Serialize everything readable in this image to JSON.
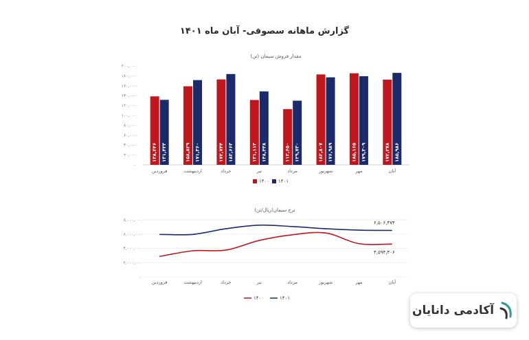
{
  "title": "گزارش ماهانه سصوفی- آبان ماه ۱۴۰۱",
  "brand": {
    "name": "آکادمی دانایان",
    "accent": "#2a9d8f"
  },
  "chart_data": [
    {
      "type": "bar",
      "title": "مقدار فروش سیمان (تن)",
      "categories": [
        "فروردین",
        "اردیبهشت",
        "خرداد",
        "تیر",
        "مرداد",
        "شهریور",
        "مهر",
        "آبان"
      ],
      "series": [
        {
          "name": "۱۴۰۰",
          "color": "#c0161c",
          "values": [
            138446,
            158829,
            172744,
            131114,
            112650,
            182807,
            185165,
            172278
          ],
          "labels": [
            "۱۳۸,۴۴۶",
            "۱۵۸,۸۲۹",
            "۱۷۲,۷۴۴",
            "۱۳۱,۱۱۴",
            "۱۱۲,۶۵۰",
            "۱۸۲,۸۰۷",
            "۱۸۵,۱۶۵",
            "۱۷۲,۲۷۸"
          ]
        },
        {
          "name": "۱۴۰۱",
          "color": "#1b2a6b",
          "values": [
            131433,
            171360,
            183663,
            148438,
            129730,
            176989,
            179309,
            185986
          ],
          "labels": [
            "۱۳۱,۴۳۳",
            "۱۷۱,۳۶۰",
            "۱۸۳,۶۶۳",
            "۱۴۸,۴۳۸",
            "۱۲۹,۷۳۰",
            "۱۷۶,۹۸۹",
            "۱۷۹,۳۰۹",
            "۱۸۵,۹۸۶"
          ]
        }
      ],
      "ylim": [
        0,
        200000
      ],
      "yticks": [
        0,
        20000,
        40000,
        60000,
        80000,
        100000,
        120000,
        140000,
        160000,
        180000,
        200000
      ],
      "ytick_labels": [
        "۰",
        "۲۰,۰۰۰",
        "۴۰,۰۰۰",
        "۶۰,۰۰۰",
        "۸۰,۰۰۰",
        "۱۰۰,۰۰۰",
        "۱۲۰,۰۰۰",
        "۱۴۰,۰۰۰",
        "۱۶۰,۰۰۰",
        "۱۸۰,۰۰۰",
        "۲۰۰,۰۰۰"
      ],
      "legend": "bottom"
    },
    {
      "type": "line",
      "title": "نرخ سیمان(ریال/تن)",
      "categories": [
        "فروردین",
        "اردیبهشت",
        "خرداد",
        "تیر",
        "مرداد",
        "شهریور",
        "مهر",
        "آبان"
      ],
      "series": [
        {
          "name": "۱۴۰۰",
          "color": "#c0161c",
          "values": [
            2850000,
            3650000,
            3750000,
            5100000,
            5900000,
            6150000,
            4650000,
            4594406
          ],
          "end_label": "۴,۵۹۴,۴۰۶"
        },
        {
          "name": "۱۴۰۱",
          "color": "#1b2a6b",
          "values": [
            5950000,
            5950000,
            6750000,
            7250000,
            7050000,
            6750000,
            6550000,
            6506474
          ],
          "end_label": "۶,۵۰۶,۴۷۴"
        }
      ],
      "ylim": [
        0,
        8000000
      ],
      "yticks": [
        0,
        2000000,
        4000000,
        6000000,
        8000000
      ],
      "ytick_labels": [
        "۰",
        "۲,۰۰۰,۰۰۰",
        "۴,۰۰۰,۰۰۰",
        "۶,۰۰۰,۰۰۰",
        "۸,۰۰۰,۰۰۰"
      ],
      "legend": "bottom"
    }
  ]
}
